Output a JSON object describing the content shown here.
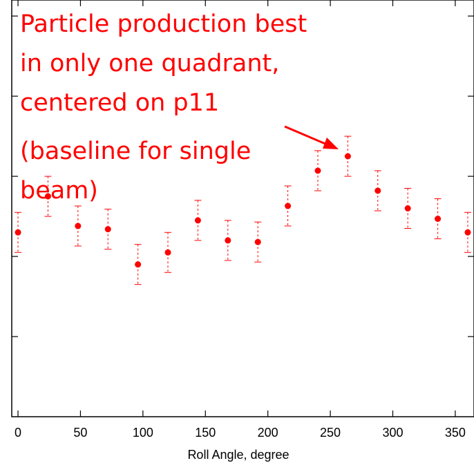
{
  "chart_data": {
    "type": "scatter",
    "title": "",
    "xlabel": "Roll Angle, degree",
    "ylabel": "",
    "xlim": [
      -5,
      365
    ],
    "ylim": [
      0,
      5.2
    ],
    "xticks": [
      0,
      50,
      100,
      150,
      200,
      250,
      300,
      350
    ],
    "grid": false,
    "series": [
      {
        "x": [
          0,
          24,
          48,
          72,
          96,
          120,
          144,
          168,
          192,
          216,
          240,
          264,
          288,
          312,
          336,
          360
        ],
        "y": [
          2.3,
          2.75,
          2.38,
          2.34,
          1.9,
          2.05,
          2.45,
          2.2,
          2.18,
          2.63,
          3.07,
          3.25,
          2.82,
          2.6,
          2.47,
          2.3
        ],
        "y_err": [
          0.25,
          0.25,
          0.25,
          0.25,
          0.25,
          0.25,
          0.25,
          0.25,
          0.25,
          0.25,
          0.25,
          0.25,
          0.25,
          0.25,
          0.25,
          0.25
        ],
        "color": "#ff0000"
      }
    ],
    "annotation": {
      "lines": [
        "Particle production best",
        "in only one quadrant,",
        "centered on p11",
        "(baseline for single",
        "beam)"
      ],
      "color": "#ff0000",
      "points_to_x": 264
    }
  }
}
